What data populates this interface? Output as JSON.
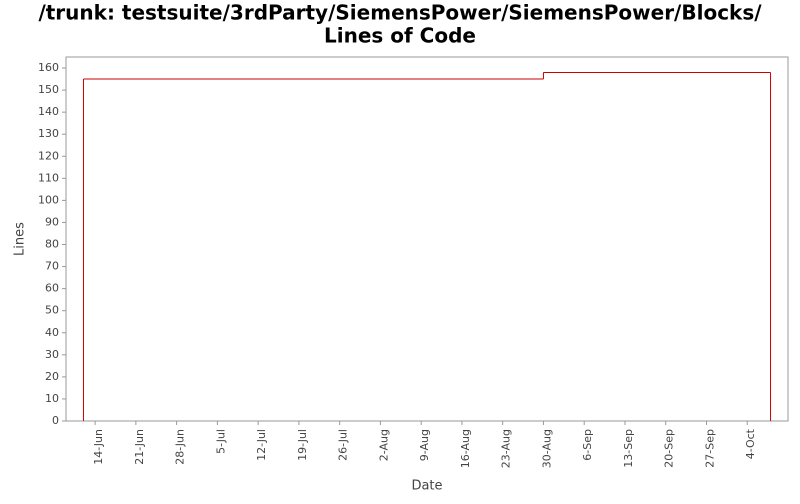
{
  "chart_data": {
    "type": "step",
    "title": [
      "/trunk: testsuite/3rdParty/SiemensPower/SiemensPower/Blocks/",
      "Lines of Code"
    ],
    "x_label": "Date",
    "y_label": "Lines",
    "series": [
      {
        "name": "Lines",
        "color": "#cc0000",
        "x": [
          "12-Jun",
          "30-Aug",
          "8-Oct"
        ],
        "values": [
          155,
          158,
          158
        ]
      }
    ],
    "xlim": [
      "9-Jun",
      "11-Oct"
    ],
    "xticks": [
      "14-Jun",
      "21-Jun",
      "28-Jun",
      "5-Jul",
      "12-Jul",
      "19-Jul",
      "26-Jul",
      "2-Aug",
      "9-Aug",
      "16-Aug",
      "23-Aug",
      "30-Aug",
      "6-Sep",
      "13-Sep",
      "20-Sep",
      "27-Sep",
      "4-Oct"
    ],
    "ylim": [
      0,
      165
    ],
    "yticks": [
      0,
      10,
      20,
      30,
      40,
      50,
      60,
      70,
      80,
      90,
      100,
      110,
      120,
      130,
      140,
      150,
      160
    ],
    "grid": false
  }
}
